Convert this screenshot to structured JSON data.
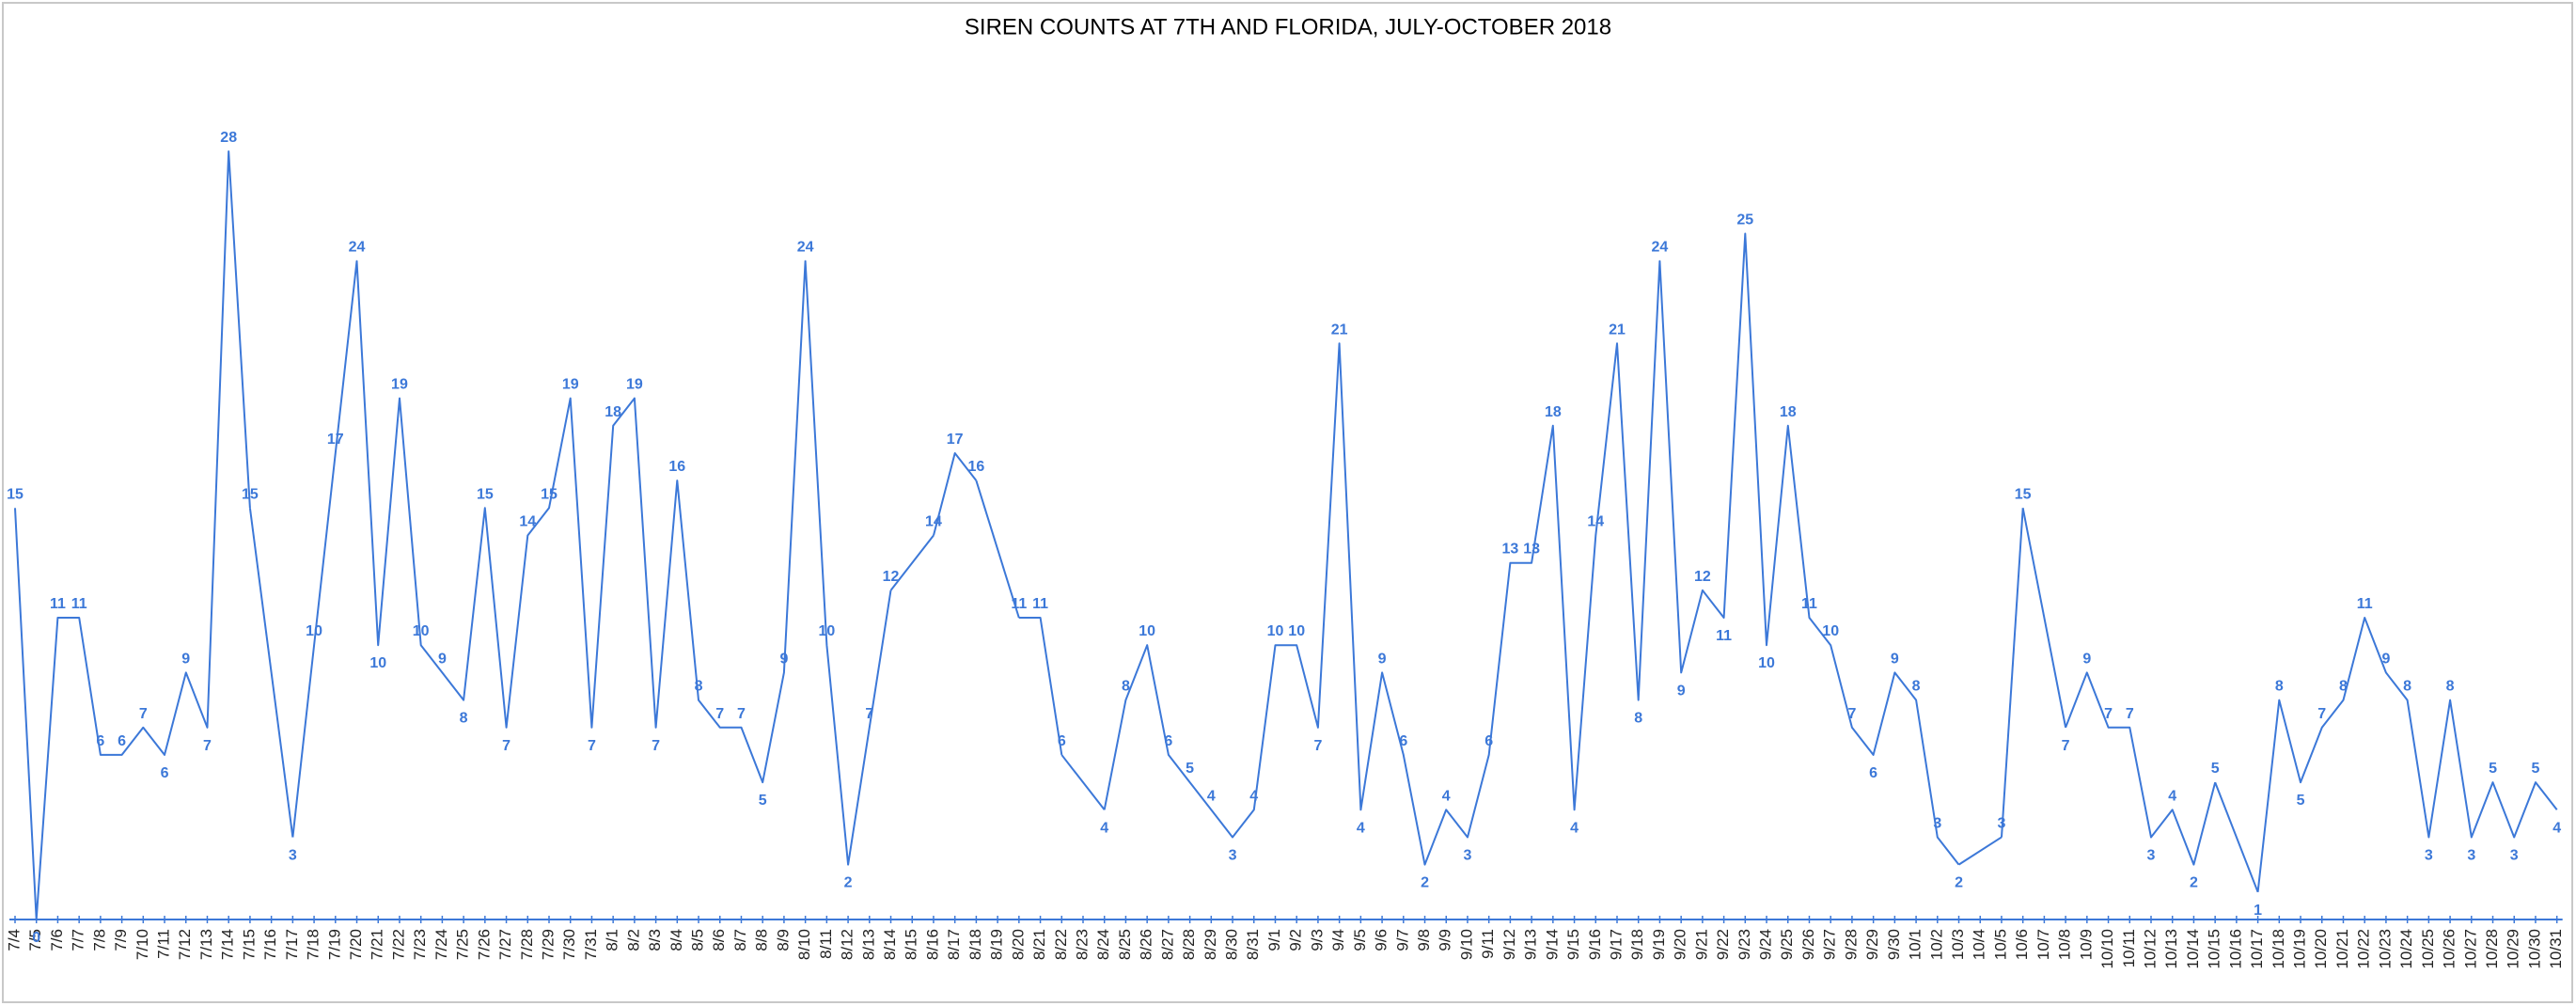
{
  "chart_data": {
    "type": "line",
    "title": "SIREN COUNTS AT 7TH AND FLORIDA, JULY-OCTOBER 2018",
    "color": "#3c78d8",
    "ylim": [
      0,
      28
    ],
    "connect_gaps": true,
    "categories": [
      "7/4",
      "7/5",
      "7/6",
      "7/7",
      "7/8",
      "7/9",
      "7/10",
      "7/11",
      "7/12",
      "7/13",
      "7/14",
      "7/15",
      "7/16",
      "7/17",
      "7/18",
      "7/19",
      "7/20",
      "7/21",
      "7/22",
      "7/23",
      "7/24",
      "7/25",
      "7/26",
      "7/27",
      "7/28",
      "7/29",
      "7/30",
      "7/31",
      "8/1",
      "8/2",
      "8/3",
      "8/4",
      "8/5",
      "8/6",
      "8/7",
      "8/8",
      "8/9",
      "8/10",
      "8/11",
      "8/12",
      "8/13",
      "8/14",
      "8/15",
      "8/16",
      "8/17",
      "8/18",
      "8/19",
      "8/20",
      "8/21",
      "8/22",
      "8/23",
      "8/24",
      "8/25",
      "8/26",
      "8/27",
      "8/28",
      "8/29",
      "8/30",
      "8/31",
      "9/1",
      "9/2",
      "9/3",
      "9/4",
      "9/5",
      "9/6",
      "9/7",
      "9/8",
      "9/9",
      "9/10",
      "9/11",
      "9/12",
      "9/13",
      "9/14",
      "9/15",
      "9/16",
      "9/17",
      "9/18",
      "9/19",
      "9/20",
      "9/21",
      "9/22",
      "9/23",
      "9/24",
      "9/25",
      "9/26",
      "9/27",
      "9/28",
      "9/29",
      "9/30",
      "10/1",
      "10/2",
      "10/3",
      "10/4",
      "10/5",
      "10/6",
      "10/7",
      "10/8",
      "10/9",
      "10/10",
      "10/11",
      "10/12",
      "10/13",
      "10/14",
      "10/15",
      "10/16",
      "10/17",
      "10/18",
      "10/19",
      "10/20",
      "10/21",
      "10/22",
      "10/23",
      "10/24",
      "10/25",
      "10/26",
      "10/27",
      "10/28",
      "10/29",
      "10/30",
      "10/31"
    ],
    "values": [
      15,
      0,
      11,
      11,
      6,
      6,
      7,
      6,
      9,
      7,
      28,
      15,
      null,
      3,
      10,
      17,
      24,
      10,
      19,
      10,
      9,
      8,
      15,
      7,
      14,
      15,
      19,
      7,
      18,
      19,
      7,
      16,
      8,
      7,
      7,
      5,
      9,
      24,
      10,
      2,
      7,
      12,
      null,
      14,
      17,
      16,
      null,
      11,
      11,
      6,
      null,
      4,
      8,
      10,
      6,
      5,
      4,
      3,
      4,
      10,
      10,
      7,
      21,
      4,
      9,
      6,
      2,
      4,
      3,
      6,
      13,
      13,
      18,
      4,
      14,
      21,
      8,
      24,
      9,
      12,
      11,
      25,
      10,
      18,
      11,
      10,
      7,
      6,
      9,
      8,
      3,
      2,
      null,
      3,
      15,
      null,
      7,
      9,
      7,
      7,
      3,
      4,
      2,
      5,
      null,
      1,
      8,
      5,
      7,
      8,
      11,
      9,
      8,
      3,
      8,
      3,
      5,
      3,
      5,
      4
    ]
  }
}
